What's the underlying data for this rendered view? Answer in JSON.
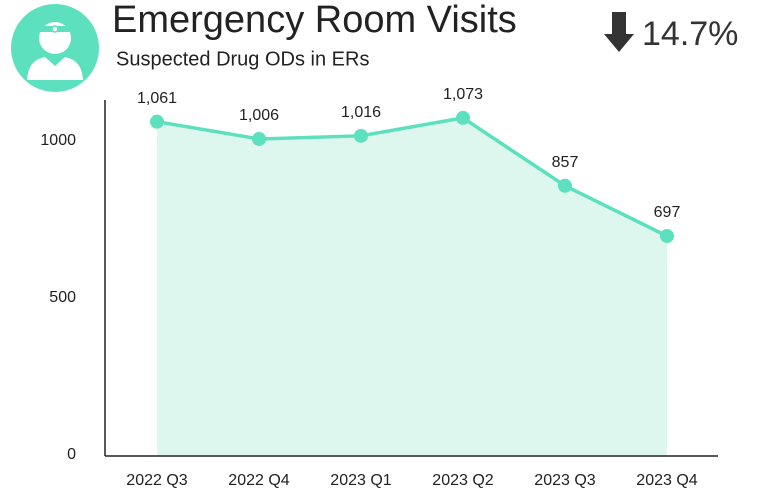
{
  "chart_data": {
    "type": "line",
    "title": "Emergency Room Visits",
    "subtitle": "Suspected  Drug ODs in ERs",
    "annotation": "14.7%",
    "categories": [
      "2022 Q3",
      "2022 Q4",
      "2023 Q1",
      "2023 Q2",
      "2023 Q3",
      "2023 Q4"
    ],
    "values": [
      1061,
      1006,
      1016,
      1073,
      857,
      697
    ],
    "value_labels": [
      "1,061",
      "1,006",
      "1,016",
      "1,073",
      "857",
      "697"
    ],
    "color": "#5ce0be",
    "area_color": "#ddf7ef",
    "ylim": [
      0,
      1130
    ],
    "yticks": [
      0,
      500,
      1000
    ],
    "grid": false
  }
}
